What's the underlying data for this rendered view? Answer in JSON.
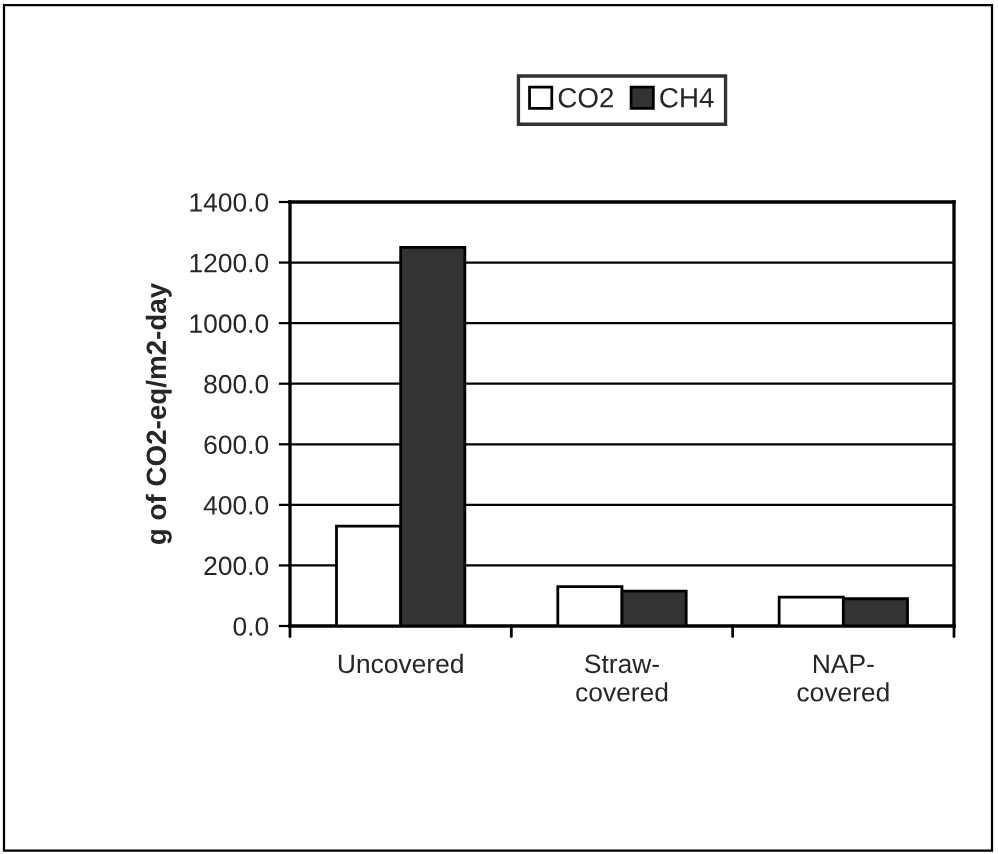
{
  "chart_data": {
    "type": "bar",
    "ylabel": "g of CO2-eq/m2-day",
    "categories": [
      "Uncovered",
      "Straw-\ncovered",
      "NAP-\ncovered"
    ],
    "series": [
      {
        "name": "CO2",
        "color": "#ffffff",
        "values": [
          330,
          130,
          95
        ]
      },
      {
        "name": "CH4",
        "color": "#333333",
        "values": [
          1250,
          115,
          90
        ]
      }
    ],
    "ylim": [
      0,
      1400
    ],
    "yticks": [
      {
        "value": 0,
        "label": "0.0"
      },
      {
        "value": 200,
        "label": "200.0"
      },
      {
        "value": 400,
        "label": "400.0"
      },
      {
        "value": 600,
        "label": "600.0"
      },
      {
        "value": 800,
        "label": "800.0"
      },
      {
        "value": 1000,
        "label": "1000.0"
      },
      {
        "value": 1200,
        "label": "1200.0"
      },
      {
        "value": 1400,
        "label": "1400.0"
      }
    ],
    "grid": "y",
    "legend": "top"
  }
}
